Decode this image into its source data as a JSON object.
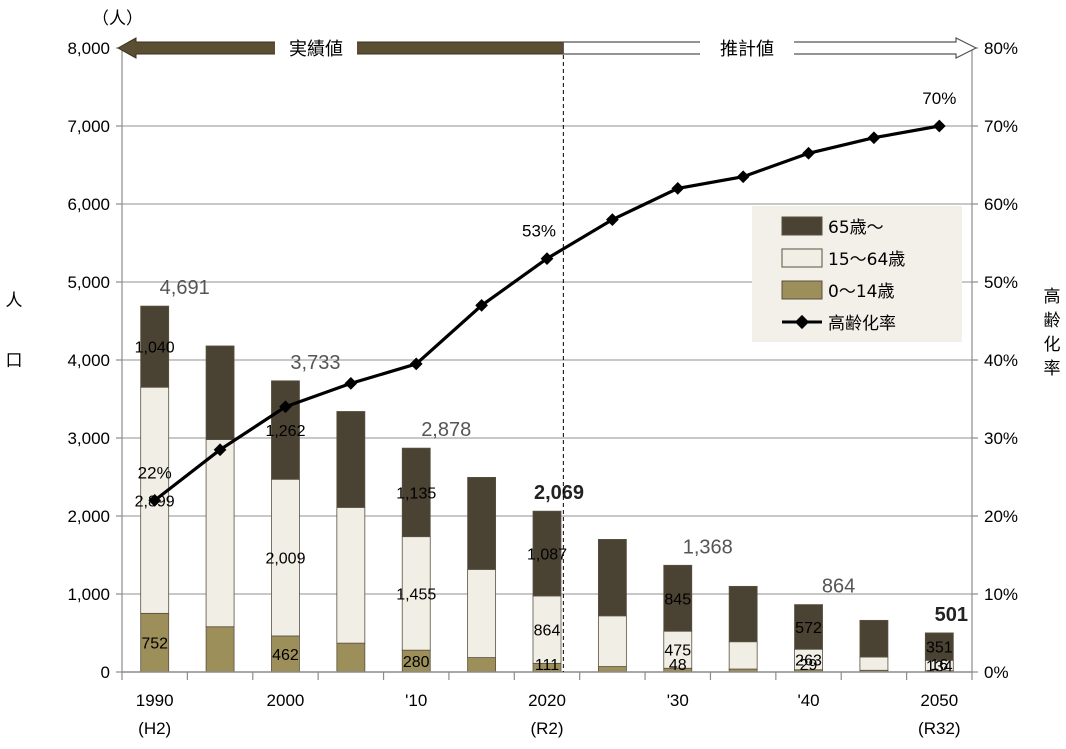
{
  "chart_data": {
    "type": "bar",
    "stacked": true,
    "unit_left": "（人）",
    "ylabel": "人口",
    "y2label": "高齢化率",
    "ylim": [
      0,
      8000
    ],
    "y2lim": [
      0,
      80
    ],
    "yticks": [
      "0",
      "1,000",
      "2,000",
      "3,000",
      "4,000",
      "5,000",
      "6,000",
      "7,000",
      "8,000"
    ],
    "y2ticks": [
      "0%",
      "10%",
      "20%",
      "30%",
      "40%",
      "50%",
      "60%",
      "70%",
      "80%"
    ],
    "categories": [
      "1990",
      "1995",
      "2000",
      "2005",
      "2010",
      "2015",
      "2020",
      "2025",
      "2030",
      "2035",
      "2040",
      "2045",
      "2050"
    ],
    "x_tick_labels": [
      {
        "index": 0,
        "line1": "1990",
        "line2": "(H2)"
      },
      {
        "index": 2,
        "line1": "2000",
        "line2": ""
      },
      {
        "index": 4,
        "line1": "'10",
        "line2": ""
      },
      {
        "index": 6,
        "line1": "2020",
        "line2": "(R2)"
      },
      {
        "index": 8,
        "line1": "'30",
        "line2": ""
      },
      {
        "index": 10,
        "line1": "'40",
        "line2": ""
      },
      {
        "index": 12,
        "line1": "2050",
        "line2": "(R32)"
      }
    ],
    "series": [
      {
        "name": "0〜14歳",
        "color": "#9c8f5a",
        "values": [
          752,
          580,
          462,
          370,
          280,
          185,
          111,
          70,
          48,
          38,
          29,
          22,
          16
        ]
      },
      {
        "name": "15〜64歳",
        "color": "#f1efe5",
        "values": [
          2899,
          2400,
          2009,
          1740,
          1455,
          1130,
          864,
          650,
          475,
          350,
          263,
          170,
          134
        ]
      },
      {
        "name": "65歳〜",
        "color": "#4a4232",
        "values": [
          1040,
          1200,
          1262,
          1230,
          1135,
          1180,
          1087,
          980,
          845,
          710,
          572,
          470,
          351
        ]
      }
    ],
    "aging_rate": {
      "name": "高齢化率",
      "values": [
        22,
        28.5,
        34,
        37,
        39.5,
        47,
        53,
        58,
        62,
        63.5,
        66.5,
        68.5,
        70
      ]
    },
    "totals": [
      "4,691",
      "",
      "3,733",
      "",
      "2,878",
      "",
      "2,069",
      "",
      "1,368",
      "",
      "864",
      "",
      "501"
    ],
    "segment_labels": {
      "young": [
        "752",
        "",
        "462",
        "",
        "280",
        "",
        "111",
        "",
        "48",
        "",
        "29",
        "",
        "16"
      ],
      "working": [
        "2,899",
        "",
        "2,009",
        "",
        "1,455",
        "",
        "864",
        "",
        "475",
        "",
        "263",
        "",
        "134"
      ],
      "elderly": [
        "1,040",
        "",
        "1,262",
        "",
        "1,135",
        "",
        "1,087",
        "",
        "845",
        "",
        "572",
        "",
        "351"
      ]
    },
    "rate_labels": [
      {
        "index": 0,
        "text": "22%"
      },
      {
        "index": 6,
        "text": "53%"
      },
      {
        "index": 12,
        "text": "70%"
      }
    ],
    "period_bands": {
      "actual": "実績値",
      "projected": "推計値"
    },
    "legend": {
      "items": [
        {
          "label": "65歳〜",
          "kind": "box",
          "color": "#4a4232"
        },
        {
          "label": "15〜64歳",
          "kind": "box",
          "color": "#f1efe5"
        },
        {
          "label": "0〜14歳",
          "kind": "box",
          "color": "#9c8f5a"
        },
        {
          "label": "高齢化率",
          "kind": "line",
          "color": "#000000"
        }
      ]
    }
  }
}
